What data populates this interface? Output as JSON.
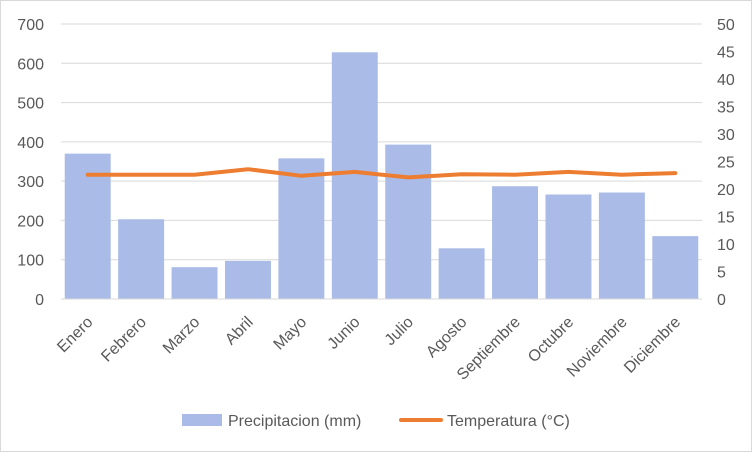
{
  "chart_data": {
    "type": "bar",
    "categories": [
      "Enero",
      "Febrero",
      "Marzo",
      "Abril",
      "Mayo",
      "Junio",
      "Julio",
      "Agosto",
      "Septiembre",
      "Octubre",
      "Noviembre",
      "Diciembre"
    ],
    "series": [
      {
        "name": "Precipitacion (mm)",
        "type": "bar",
        "axis": "left",
        "color": "#a9bbe6",
        "values": [
          370,
          203,
          81,
          97,
          358,
          628,
          393,
          129,
          287,
          266,
          271,
          160
        ]
      },
      {
        "name": "Temperatura (°C)",
        "type": "line",
        "axis": "right",
        "color": "#ed7d31",
        "values": [
          22.6,
          22.6,
          22.6,
          23.6,
          22.4,
          23.1,
          22.1,
          22.7,
          22.6,
          23.1,
          22.6,
          22.9
        ]
      }
    ],
    "y_left": {
      "min": 0,
      "max": 700,
      "ticks": [
        "0",
        "100",
        "200",
        "300",
        "400",
        "500",
        "600",
        "700"
      ]
    },
    "y_right": {
      "min": 0,
      "max": 50,
      "ticks": [
        "0",
        "5",
        "10",
        "15",
        "20",
        "25",
        "30",
        "35",
        "40",
        "45",
        "50"
      ]
    },
    "grid": true,
    "legend": "bottom",
    "gridline_color": "#d9d9d9"
  }
}
